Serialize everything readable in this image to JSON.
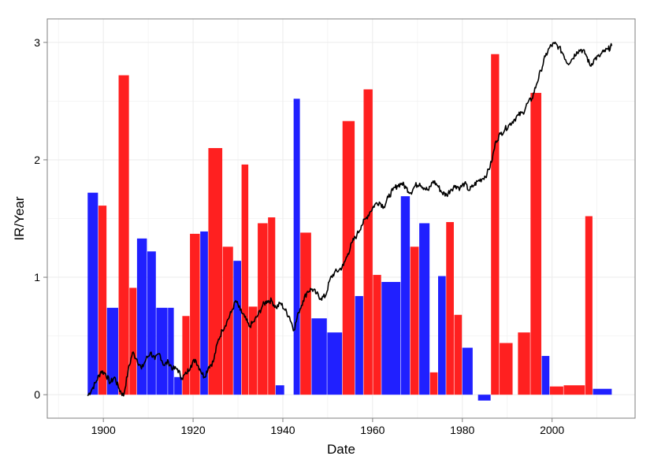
{
  "chart_data": {
    "type": "bar",
    "xlabel": "Date",
    "ylabel": "IR/Year",
    "xlim": [
      1887.5,
      2018.5
    ],
    "ylim": [
      -0.2,
      3.2
    ],
    "x_ticks": [
      1900,
      1920,
      1940,
      1960,
      1980,
      2000
    ],
    "x_tick_labels": [
      "1900",
      "1920",
      "1940",
      "1960",
      "1980",
      "2000"
    ],
    "y_ticks": [
      0,
      1,
      2,
      3
    ],
    "y_tick_labels": [
      "0",
      "1",
      "2",
      "3"
    ],
    "grid": true,
    "legend": "none",
    "colors": {
      "positive_period": "#ff2020",
      "negative_period": "#2020ff",
      "line": "#000000",
      "panel_border": "#7f7f7f",
      "grid": "#ebebeb"
    },
    "bars": [
      {
        "start": 1896.5,
        "end": 1898.8,
        "value": 1.72,
        "color": "blue"
      },
      {
        "start": 1898.9,
        "end": 1900.7,
        "value": 1.61,
        "color": "red"
      },
      {
        "start": 1900.8,
        "end": 1903.3,
        "value": 0.74,
        "color": "blue"
      },
      {
        "start": 1903.4,
        "end": 1905.7,
        "value": 2.72,
        "color": "red"
      },
      {
        "start": 1905.8,
        "end": 1907.4,
        "value": 0.91,
        "color": "red"
      },
      {
        "start": 1907.5,
        "end": 1909.7,
        "value": 1.33,
        "color": "blue"
      },
      {
        "start": 1909.8,
        "end": 1911.7,
        "value": 1.22,
        "color": "blue"
      },
      {
        "start": 1911.8,
        "end": 1914.3,
        "value": 0.74,
        "color": "blue"
      },
      {
        "start": 1914.4,
        "end": 1915.7,
        "value": 0.74,
        "color": "blue"
      },
      {
        "start": 1915.8,
        "end": 1917.5,
        "value": 0.15,
        "color": "blue"
      },
      {
        "start": 1917.6,
        "end": 1919.2,
        "value": 0.67,
        "color": "red"
      },
      {
        "start": 1919.3,
        "end": 1921.5,
        "value": 1.37,
        "color": "red"
      },
      {
        "start": 1921.6,
        "end": 1923.3,
        "value": 1.39,
        "color": "blue"
      },
      {
        "start": 1923.4,
        "end": 1926.5,
        "value": 2.1,
        "color": "red"
      },
      {
        "start": 1926.6,
        "end": 1928.9,
        "value": 1.26,
        "color": "red"
      },
      {
        "start": 1929.0,
        "end": 1930.7,
        "value": 1.14,
        "color": "blue"
      },
      {
        "start": 1930.8,
        "end": 1932.3,
        "value": 1.96,
        "color": "red"
      },
      {
        "start": 1932.4,
        "end": 1934.3,
        "value": 0.75,
        "color": "red"
      },
      {
        "start": 1934.4,
        "end": 1936.6,
        "value": 1.46,
        "color": "red"
      },
      {
        "start": 1936.7,
        "end": 1938.3,
        "value": 1.51,
        "color": "red"
      },
      {
        "start": 1938.4,
        "end": 1940.3,
        "value": 0.08,
        "color": "blue"
      },
      {
        "start": 1942.4,
        "end": 1943.8,
        "value": 2.52,
        "color": "blue"
      },
      {
        "start": 1943.9,
        "end": 1946.3,
        "value": 1.38,
        "color": "red"
      },
      {
        "start": 1946.4,
        "end": 1949.8,
        "value": 0.65,
        "color": "blue"
      },
      {
        "start": 1949.9,
        "end": 1953.2,
        "value": 0.53,
        "color": "blue"
      },
      {
        "start": 1953.3,
        "end": 1956.0,
        "value": 2.33,
        "color": "red"
      },
      {
        "start": 1956.1,
        "end": 1957.9,
        "value": 0.84,
        "color": "blue"
      },
      {
        "start": 1958.0,
        "end": 1960.0,
        "value": 2.6,
        "color": "red"
      },
      {
        "start": 1960.1,
        "end": 1961.9,
        "value": 1.02,
        "color": "red"
      },
      {
        "start": 1962.0,
        "end": 1966.2,
        "value": 0.96,
        "color": "blue"
      },
      {
        "start": 1966.3,
        "end": 1968.3,
        "value": 1.69,
        "color": "blue"
      },
      {
        "start": 1968.4,
        "end": 1970.3,
        "value": 1.26,
        "color": "red"
      },
      {
        "start": 1970.4,
        "end": 1972.7,
        "value": 1.46,
        "color": "blue"
      },
      {
        "start": 1972.8,
        "end": 1974.5,
        "value": 0.19,
        "color": "red"
      },
      {
        "start": 1974.6,
        "end": 1976.3,
        "value": 1.01,
        "color": "blue"
      },
      {
        "start": 1976.4,
        "end": 1978.1,
        "value": 1.47,
        "color": "red"
      },
      {
        "start": 1978.2,
        "end": 1979.9,
        "value": 0.68,
        "color": "red"
      },
      {
        "start": 1980.0,
        "end": 1982.3,
        "value": 0.4,
        "color": "blue"
      },
      {
        "start": 1983.5,
        "end": 1986.3,
        "value": -0.05,
        "color": "blue"
      },
      {
        "start": 1986.4,
        "end": 1988.2,
        "value": 2.9,
        "color": "red"
      },
      {
        "start": 1988.3,
        "end": 1991.2,
        "value": 0.44,
        "color": "red"
      },
      {
        "start": 1992.4,
        "end": 1995.1,
        "value": 0.53,
        "color": "red"
      },
      {
        "start": 1995.2,
        "end": 1997.6,
        "value": 2.57,
        "color": "red"
      },
      {
        "start": 1997.7,
        "end": 1999.4,
        "value": 0.33,
        "color": "blue"
      },
      {
        "start": 1999.5,
        "end": 2002.5,
        "value": 0.07,
        "color": "red"
      },
      {
        "start": 2002.6,
        "end": 2007.3,
        "value": 0.08,
        "color": "red"
      },
      {
        "start": 2007.4,
        "end": 2009.0,
        "value": 1.52,
        "color": "red"
      },
      {
        "start": 2009.1,
        "end": 2013.3,
        "value": 0.05,
        "color": "blue"
      }
    ],
    "line": {
      "x": [
        1896.5,
        1897.5,
        1898.5,
        1899.5,
        1900.5,
        1901.5,
        1902.5,
        1903.5,
        1904.5,
        1905.5,
        1906.5,
        1907.5,
        1908.5,
        1909.5,
        1910.5,
        1911.5,
        1912.5,
        1913.5,
        1914.5,
        1915.5,
        1916.5,
        1917.5,
        1918.5,
        1919.5,
        1920.5,
        1921.5,
        1922.5,
        1923.5,
        1924.5,
        1925.5,
        1926.5,
        1927.5,
        1928.5,
        1929.5,
        1930.5,
        1931.5,
        1932.5,
        1933.5,
        1934.5,
        1935.5,
        1936.5,
        1937.5,
        1938.5,
        1939.5,
        1940.5,
        1941.5,
        1942.5,
        1943.5,
        1944.5,
        1945.5,
        1946.5,
        1947.5,
        1948.5,
        1949.5,
        1950.5,
        1951.5,
        1952.5,
        1953.5,
        1954.5,
        1955.5,
        1956.5,
        1957.5,
        1958.5,
        1959.5,
        1960.5,
        1961.5,
        1962.5,
        1963.5,
        1964.5,
        1965.5,
        1966.5,
        1967.5,
        1968.5,
        1969.5,
        1970.5,
        1971.5,
        1972.5,
        1973.5,
        1974.5,
        1975.5,
        1976.5,
        1977.5,
        1978.5,
        1979.5,
        1980.5,
        1981.5,
        1982.5,
        1983.5,
        1984.5,
        1985.5,
        1986.5,
        1987.5,
        1988.5,
        1989.5,
        1990.5,
        1991.5,
        1992.5,
        1993.5,
        1994.5,
        1995.5,
        1996.5,
        1997.5,
        1998.5,
        1999.5,
        2000.5,
        2001.5,
        2002.5,
        2003.5,
        2004.5,
        2005.5,
        2006.5,
        2007.5,
        2008.5,
        2009.5,
        2010.5,
        2011.5,
        2012.5,
        2013.3
      ],
      "y": [
        -0.01,
        0.05,
        0.12,
        0.2,
        0.18,
        0.1,
        0.15,
        0.05,
        -0.01,
        0.2,
        0.36,
        0.3,
        0.22,
        0.3,
        0.36,
        0.3,
        0.35,
        0.25,
        0.28,
        0.22,
        0.22,
        0.14,
        0.18,
        0.25,
        0.3,
        0.22,
        0.15,
        0.24,
        0.28,
        0.45,
        0.55,
        0.62,
        0.7,
        0.8,
        0.72,
        0.66,
        0.58,
        0.62,
        0.68,
        0.76,
        0.8,
        0.8,
        0.74,
        0.78,
        0.72,
        0.66,
        0.55,
        0.7,
        0.8,
        0.88,
        0.9,
        0.86,
        0.82,
        0.84,
        0.98,
        1.04,
        1.06,
        1.1,
        1.2,
        1.3,
        1.36,
        1.44,
        1.5,
        1.56,
        1.62,
        1.64,
        1.6,
        1.68,
        1.74,
        1.78,
        1.8,
        1.76,
        1.72,
        1.78,
        1.8,
        1.76,
        1.74,
        1.82,
        1.78,
        1.72,
        1.7,
        1.75,
        1.78,
        1.76,
        1.8,
        1.74,
        1.78,
        1.82,
        1.84,
        1.88,
        1.98,
        2.16,
        2.22,
        2.26,
        2.3,
        2.34,
        2.38,
        2.4,
        2.48,
        2.52,
        2.64,
        2.76,
        2.88,
        2.96,
        2.99,
        2.96,
        2.9,
        2.82,
        2.86,
        2.92,
        2.94,
        2.9,
        2.8,
        2.86,
        2.88,
        2.92,
        2.94,
        2.97
      ]
    }
  }
}
